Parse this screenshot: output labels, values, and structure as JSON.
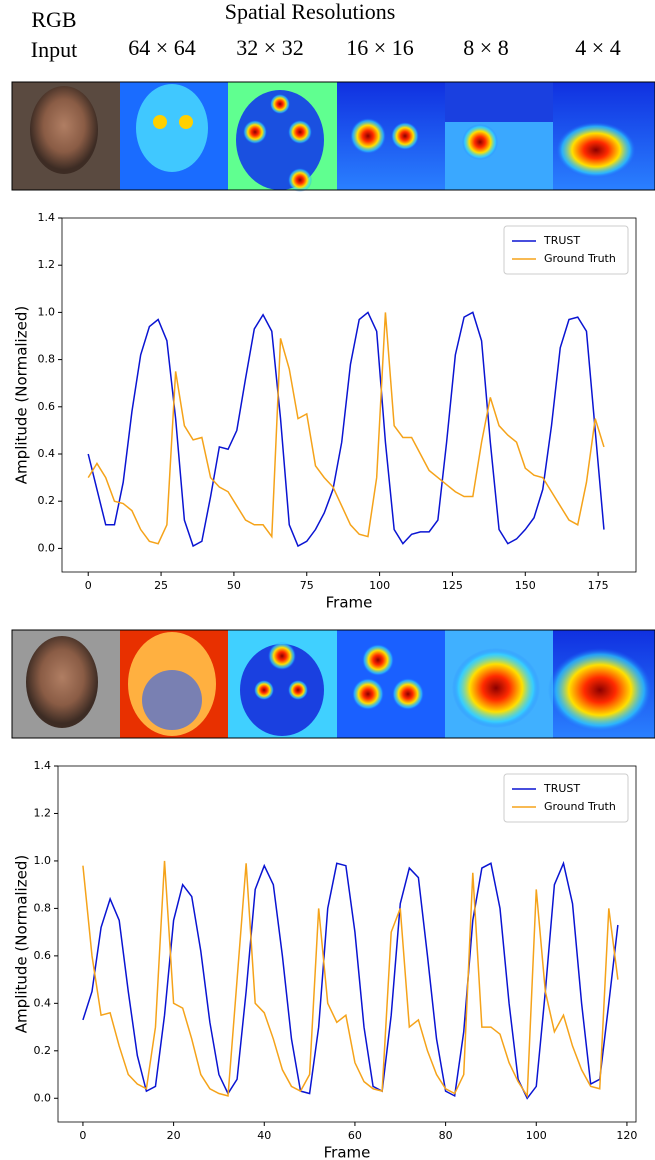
{
  "header": {
    "rgb_input": [
      "RGB",
      "Input"
    ],
    "title": "Spatial Resolutions",
    "resolutions": [
      "64 × 64",
      "32 × 32",
      "16 × 16",
      "8 × 8",
      "4 × 4"
    ]
  },
  "chart_data": [
    {
      "type": "line",
      "xlabel": "Frame",
      "ylabel": "Amplitude (Normalized)",
      "x": [
        0,
        3,
        6,
        9,
        12,
        15,
        18,
        21,
        24,
        27,
        30,
        33,
        36,
        39,
        42,
        45,
        48,
        51,
        54,
        57,
        60,
        63,
        66,
        69,
        72,
        75,
        78,
        81,
        84,
        87,
        90,
        93,
        96,
        99,
        102,
        105,
        108,
        111,
        114,
        117,
        120,
        123,
        126,
        129,
        132,
        135,
        138,
        141,
        144,
        147,
        150,
        153,
        156,
        159,
        162,
        165,
        168,
        171,
        174,
        177
      ],
      "series": [
        {
          "name": "TRUST",
          "color": "#0a14d2",
          "values": [
            0.4,
            0.25,
            0.1,
            0.1,
            0.28,
            0.58,
            0.82,
            0.94,
            0.97,
            0.88,
            0.55,
            0.12,
            0.01,
            0.03,
            0.22,
            0.43,
            0.42,
            0.5,
            0.72,
            0.93,
            0.99,
            0.92,
            0.55,
            0.1,
            0.01,
            0.03,
            0.08,
            0.15,
            0.25,
            0.45,
            0.78,
            0.97,
            1.0,
            0.92,
            0.45,
            0.08,
            0.02,
            0.06,
            0.07,
            0.07,
            0.12,
            0.45,
            0.82,
            0.98,
            1.0,
            0.88,
            0.45,
            0.08,
            0.02,
            0.04,
            0.08,
            0.13,
            0.25,
            0.52,
            0.85,
            0.97,
            0.98,
            0.92,
            0.5,
            0.08
          ]
        },
        {
          "name": "Ground Truth",
          "color": "#f5a31a",
          "values": [
            0.3,
            0.36,
            0.3,
            0.2,
            0.19,
            0.16,
            0.08,
            0.03,
            0.02,
            0.1,
            0.75,
            0.52,
            0.46,
            0.47,
            0.3,
            0.26,
            0.24,
            0.18,
            0.12,
            0.1,
            0.1,
            0.05,
            0.89,
            0.76,
            0.55,
            0.57,
            0.35,
            0.3,
            0.26,
            0.18,
            0.1,
            0.06,
            0.05,
            0.3,
            1.0,
            0.52,
            0.47,
            0.47,
            0.4,
            0.33,
            0.3,
            0.27,
            0.24,
            0.22,
            0.22,
            0.45,
            0.64,
            0.52,
            0.48,
            0.45,
            0.34,
            0.31,
            0.3,
            0.24,
            0.18,
            0.12,
            0.1,
            0.28,
            0.55,
            0.43
          ]
        }
      ],
      "xlim": [
        -9,
        188
      ],
      "ylim": [
        -0.1,
        1.4
      ],
      "xticks": [
        0,
        25,
        50,
        75,
        100,
        125,
        150,
        175
      ],
      "yticks": [
        {
          "value": 0,
          "label": "0.0"
        },
        {
          "value": 0.2,
          "label": "0.2"
        },
        {
          "value": 0.4,
          "label": "0.4"
        },
        {
          "value": 0.6,
          "label": "0.6"
        },
        {
          "value": 0.8,
          "label": "0.8"
        },
        {
          "value": 1,
          "label": "1.0"
        },
        {
          "value": 1.2,
          "label": "1.2"
        },
        {
          "value": 1.4,
          "label": "1.4"
        }
      ],
      "legend": "upper right"
    },
    {
      "type": "line",
      "xlabel": "Frame",
      "ylabel": "Amplitude (Normalized)",
      "x": [
        0,
        2,
        4,
        6,
        8,
        10,
        12,
        14,
        16,
        18,
        20,
        22,
        24,
        26,
        28,
        30,
        32,
        34,
        36,
        38,
        40,
        42,
        44,
        46,
        48,
        50,
        52,
        54,
        56,
        58,
        60,
        62,
        64,
        66,
        68,
        70,
        72,
        74,
        76,
        78,
        80,
        82,
        84,
        86,
        88,
        90,
        92,
        94,
        96,
        98,
        100,
        102,
        104,
        106,
        108,
        110,
        112,
        114,
        116,
        118
      ],
      "series": [
        {
          "name": "TRUST",
          "color": "#0a14d2",
          "values": [
            0.33,
            0.45,
            0.72,
            0.84,
            0.75,
            0.45,
            0.18,
            0.03,
            0.05,
            0.35,
            0.75,
            0.9,
            0.85,
            0.62,
            0.32,
            0.1,
            0.02,
            0.08,
            0.45,
            0.88,
            0.98,
            0.9,
            0.6,
            0.25,
            0.03,
            0.02,
            0.3,
            0.8,
            0.99,
            0.98,
            0.7,
            0.3,
            0.05,
            0.03,
            0.35,
            0.82,
            0.97,
            0.93,
            0.6,
            0.25,
            0.03,
            0.01,
            0.28,
            0.75,
            0.97,
            0.99,
            0.8,
            0.4,
            0.08,
            0.0,
            0.05,
            0.45,
            0.9,
            0.99,
            0.82,
            0.4,
            0.06,
            0.08,
            0.4,
            0.73
          ]
        },
        {
          "name": "Ground Truth",
          "color": "#f5a31a",
          "values": [
            0.98,
            0.6,
            0.35,
            0.36,
            0.22,
            0.1,
            0.06,
            0.04,
            0.3,
            1.0,
            0.4,
            0.38,
            0.25,
            0.1,
            0.04,
            0.02,
            0.01,
            0.5,
            0.99,
            0.4,
            0.36,
            0.25,
            0.12,
            0.05,
            0.03,
            0.1,
            0.8,
            0.4,
            0.32,
            0.35,
            0.15,
            0.07,
            0.04,
            0.03,
            0.7,
            0.8,
            0.3,
            0.33,
            0.2,
            0.1,
            0.04,
            0.02,
            0.1,
            0.95,
            0.3,
            0.3,
            0.27,
            0.15,
            0.07,
            0.01,
            0.88,
            0.45,
            0.28,
            0.35,
            0.22,
            0.12,
            0.05,
            0.04,
            0.8,
            0.5
          ]
        }
      ],
      "xlim": [
        -5.5,
        122
      ],
      "ylim": [
        -0.1,
        1.4
      ],
      "xticks": [
        0,
        20,
        40,
        60,
        80,
        100,
        120
      ],
      "yticks": [
        {
          "value": 0,
          "label": "0.0"
        },
        {
          "value": 0.2,
          "label": "0.2"
        },
        {
          "value": 0.4,
          "label": "0.4"
        },
        {
          "value": 0.6,
          "label": "0.6"
        },
        {
          "value": 0.8,
          "label": "0.8"
        },
        {
          "value": 1,
          "label": "1.0"
        },
        {
          "value": 1.2,
          "label": "1.2"
        },
        {
          "value": 1.4,
          "label": "1.4"
        }
      ],
      "legend": "upper right"
    }
  ]
}
